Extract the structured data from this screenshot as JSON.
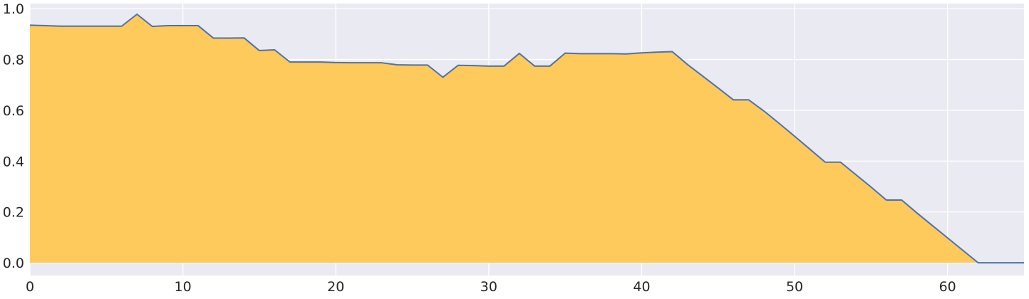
{
  "chart_data": {
    "type": "area",
    "title": "",
    "xlabel": "",
    "ylabel": "",
    "xlim": [
      0,
      65
    ],
    "ylim": [
      -0.05,
      1.02
    ],
    "grid": true,
    "x_ticks": [
      0,
      10,
      20,
      30,
      40,
      50,
      60
    ],
    "x_tick_labels": [
      "0",
      "10",
      "20",
      "30",
      "40",
      "50",
      "60"
    ],
    "y_ticks": [
      0.0,
      0.2,
      0.4,
      0.6,
      0.8,
      1.0
    ],
    "y_tick_labels": [
      "0.0",
      "0.2",
      "0.4",
      "0.6",
      "0.8",
      "1.0"
    ],
    "colors": {
      "background": "#eaeaf2",
      "grid": "#ffffff",
      "fill": "#ffca5c",
      "line": "#4c72b0"
    },
    "x": [
      0,
      1,
      2,
      3,
      4,
      5,
      6,
      7,
      8,
      9,
      10,
      11,
      12,
      13,
      14,
      15,
      16,
      17,
      18,
      19,
      20,
      21,
      22,
      23,
      24,
      25,
      26,
      27,
      28,
      29,
      30,
      31,
      32,
      33,
      34,
      35,
      36,
      37,
      38,
      39,
      40,
      41,
      42,
      43,
      44,
      45,
      46,
      47,
      48,
      49,
      50,
      51,
      52,
      53,
      54,
      55,
      56,
      57,
      58,
      59,
      60,
      61,
      62,
      63,
      64,
      65
    ],
    "y": [
      0.935,
      0.933,
      0.931,
      0.931,
      0.931,
      0.931,
      0.931,
      0.978,
      0.93,
      0.933,
      0.933,
      0.933,
      0.884,
      0.884,
      0.885,
      0.835,
      0.838,
      0.79,
      0.79,
      0.79,
      0.788,
      0.787,
      0.787,
      0.787,
      0.779,
      0.778,
      0.778,
      0.73,
      0.777,
      0.776,
      0.774,
      0.774,
      0.824,
      0.774,
      0.774,
      0.825,
      0.823,
      0.823,
      0.823,
      0.822,
      0.826,
      0.829,
      0.831,
      0.78,
      0.734,
      0.688,
      0.641,
      0.641,
      0.597,
      0.548,
      0.498,
      0.447,
      0.396,
      0.396,
      0.347,
      0.298,
      0.247,
      0.247,
      0.196,
      0.147,
      0.098,
      0.049,
      0.0,
      0.0,
      0.0,
      0.0
    ]
  }
}
